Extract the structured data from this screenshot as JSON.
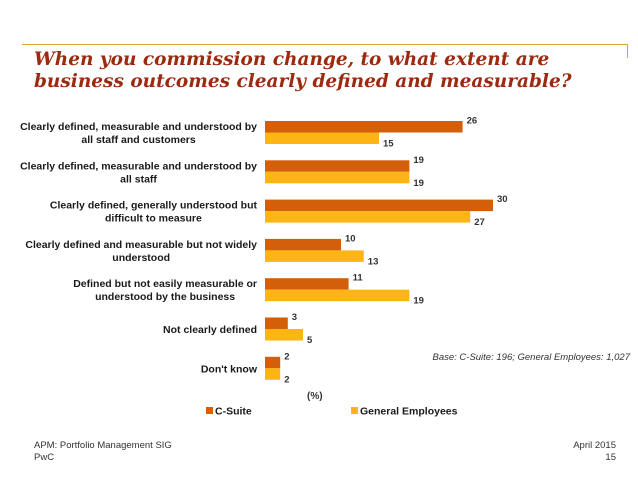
{
  "title": "When you commission change, to what extent are business outcomes clearly defined and measurable?",
  "base_note": "Base: C-Suite: 196; General Employees: 1,027",
  "footer": {
    "left_line1": "APM: Portfolio Management SIG",
    "left_line2": "PwC",
    "right_line1": "April 2015",
    "right_line2": "15"
  },
  "colors": {
    "title": "#9c2a0f",
    "c_suite": "#d35f0a",
    "general_employees": "#fdb515",
    "frame": "#e0a33a"
  },
  "chart_data": {
    "type": "bar",
    "orientation": "horizontal",
    "unit_label": "(%)",
    "categories": [
      [
        "Clearly defined, measurable and understood by",
        "all staff and customers"
      ],
      [
        "Clearly defined, measurable and understood by",
        "all staff"
      ],
      [
        "Clearly defined, generally understood but",
        "difficult to measure"
      ],
      [
        "Clearly defined and measurable but not widely",
        "understood"
      ],
      [
        "Defined but not easily measurable or",
        "understood by the business"
      ],
      [
        "Not clearly defined"
      ],
      [
        "Don't know"
      ]
    ],
    "series": [
      {
        "name": "C-Suite",
        "color": "#d35f0a",
        "values": [
          26,
          19,
          30,
          10,
          11,
          3,
          2
        ]
      },
      {
        "name": "General Employees",
        "color": "#fdb515",
        "values": [
          15,
          19,
          27,
          13,
          19,
          5,
          2
        ]
      }
    ],
    "xlim": [
      0,
      30
    ],
    "legend": "bottom"
  }
}
